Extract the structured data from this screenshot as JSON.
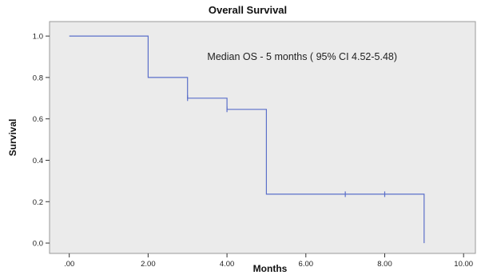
{
  "chart_data": {
    "type": "line",
    "title": "Overall Survival",
    "xlabel": "Months",
    "ylabel": "Survival",
    "xlim": [
      -0.5,
      10.3
    ],
    "ylim": [
      -0.05,
      1.07
    ],
    "x_ticks": [
      0,
      2,
      4,
      6,
      8,
      10
    ],
    "x_tick_labels": [
      ".00",
      "2.00",
      "4.00",
      "6.00",
      "8.00",
      "10.00"
    ],
    "y_ticks": [
      0.0,
      0.2,
      0.4,
      0.6,
      0.8,
      1.0
    ],
    "y_tick_labels": [
      "0.0",
      "0.2",
      "0.4",
      "0.6",
      "0.8",
      "1.0"
    ],
    "grid": false,
    "plot_background": "#ebebeb",
    "line_color": "#5b6fc9",
    "series": [
      {
        "step": true,
        "points": [
          {
            "x": 0,
            "y": 1.0
          },
          {
            "x": 2,
            "y": 1.0
          },
          {
            "x": 2,
            "y": 0.8
          },
          {
            "x": 3,
            "y": 0.8
          },
          {
            "x": 3,
            "y": 0.7
          },
          {
            "x": 4,
            "y": 0.7
          },
          {
            "x": 4,
            "y": 0.646
          },
          {
            "x": 5,
            "y": 0.646
          },
          {
            "x": 5,
            "y": 0.236
          },
          {
            "x": 9,
            "y": 0.236
          },
          {
            "x": 9,
            "y": 0.0
          }
        ],
        "censored": [
          {
            "x": 3,
            "y": 0.7
          },
          {
            "x": 4,
            "y": 0.646
          },
          {
            "x": 7,
            "y": 0.236
          },
          {
            "x": 8,
            "y": 0.236
          }
        ]
      }
    ],
    "annotation": {
      "text": "Median OS - 5 months ( 95% CI 4.52-5.48)",
      "x": 3.5,
      "y": 0.885
    }
  }
}
